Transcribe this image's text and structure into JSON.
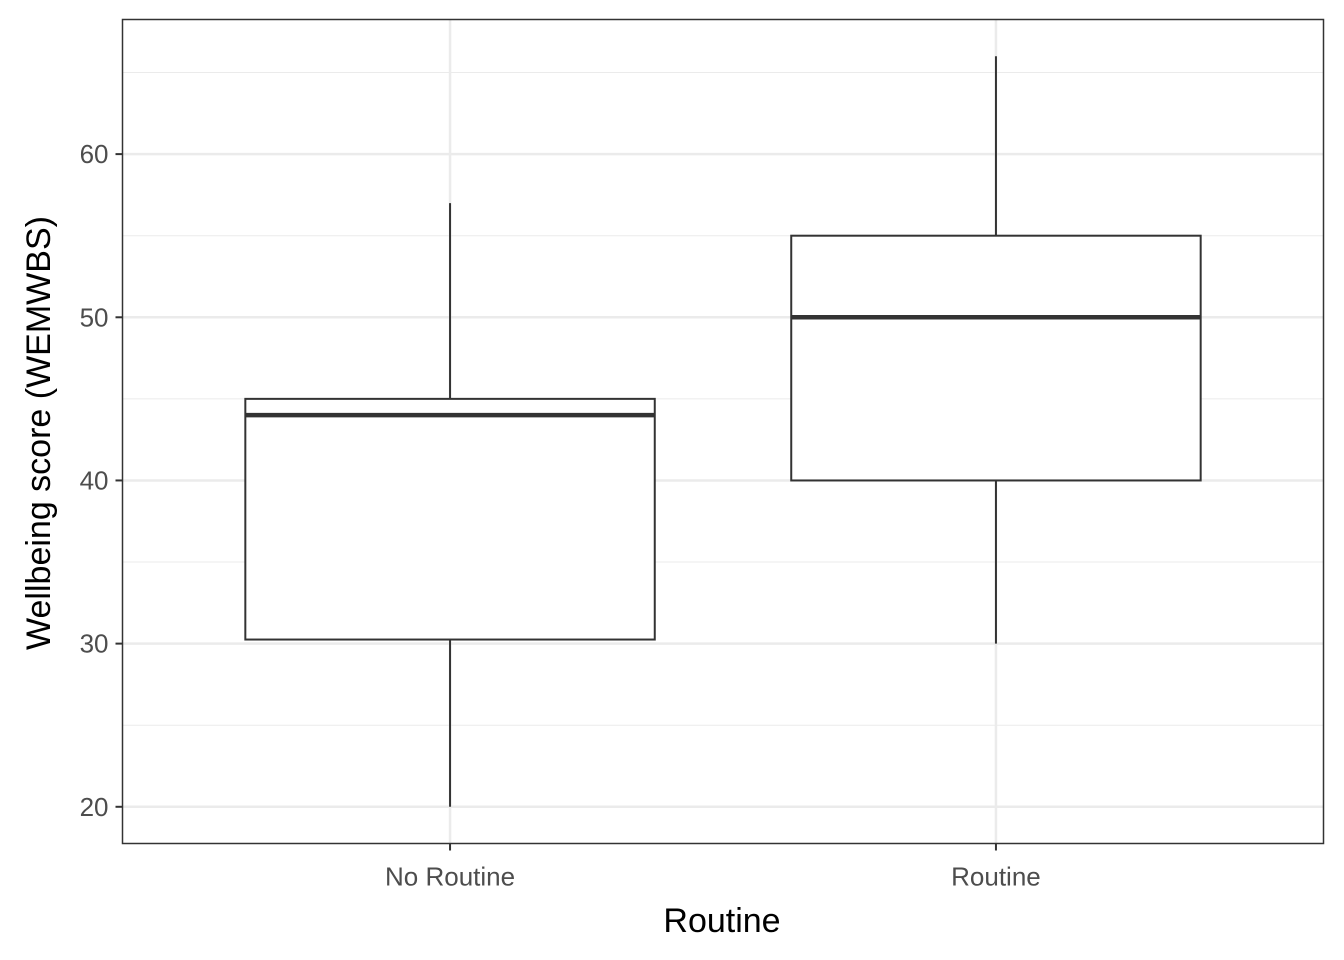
{
  "chart_data": {
    "type": "box",
    "title": "",
    "xlabel": "Routine",
    "ylabel": "Wellbeing score (WEMWBS)",
    "ylim": [
      17.75,
      68.25
    ],
    "y_ticks": [
      20,
      30,
      40,
      50,
      60
    ],
    "y_tick_labels": [
      "20",
      "30",
      "40",
      "50",
      "60"
    ],
    "categories": [
      "No Routine",
      "Routine"
    ],
    "boxes": [
      {
        "category": "No Routine",
        "min": 20,
        "q1": 30.25,
        "median": 44,
        "q3": 45,
        "max": 57
      },
      {
        "category": "Routine",
        "min": 30,
        "q1": 40,
        "median": 50,
        "q3": 55,
        "max": 66
      }
    ],
    "grid": true,
    "colors": {
      "box_fill": "#ffffff",
      "box_stroke": "#333333",
      "grid": "#ebebeb",
      "panel_border": "#333333"
    }
  }
}
